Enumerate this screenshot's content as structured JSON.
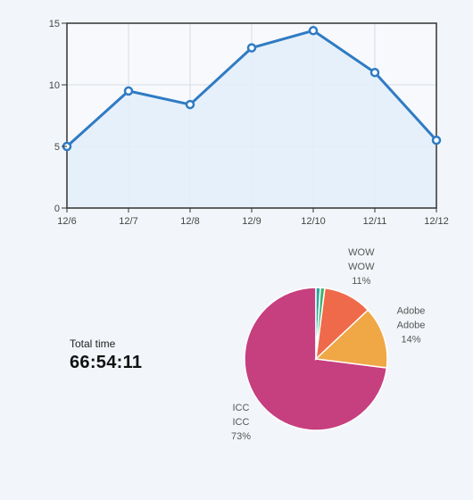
{
  "chart_data": [
    {
      "type": "area",
      "categories": [
        "12/6",
        "12/7",
        "12/8",
        "12/9",
        "12/10",
        "12/11",
        "12/12"
      ],
      "values": [
        5,
        9.5,
        8.4,
        13,
        14.4,
        11,
        5.5
      ],
      "y_ticks": [
        "0",
        "5",
        "10",
        "15"
      ],
      "ylim": [
        0,
        15
      ],
      "grid": true,
      "line_color": "#2f7bc4",
      "fill_color": "#e3eef9"
    },
    {
      "type": "pie",
      "slices": [
        {
          "label": "ICC",
          "sublabel": "ICC",
          "percent_label": "73%",
          "value": 73,
          "color": "#c63f7f"
        },
        {
          "label": "",
          "sublabel": "",
          "percent_label": "",
          "value": 1,
          "color": "#2aa8a0"
        },
        {
          "label": "",
          "sublabel": "",
          "percent_label": "",
          "value": 1,
          "color": "#3cb371"
        },
        {
          "label": "WOW",
          "sublabel": "WOW",
          "percent_label": "11%",
          "value": 11,
          "color": "#ef6a4a"
        },
        {
          "label": "Adobe",
          "sublabel": "Adobe",
          "percent_label": "14%",
          "value": 14,
          "color": "#f0a746"
        }
      ]
    }
  ],
  "summary": {
    "label": "Total time",
    "value": "66:54:11"
  }
}
